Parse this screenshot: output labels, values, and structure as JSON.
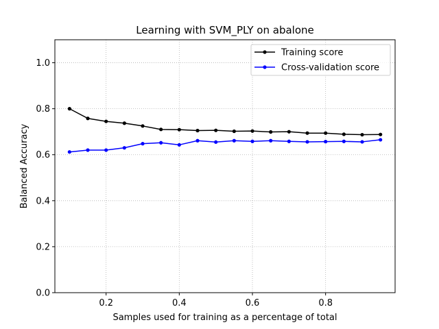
{
  "chart_data": {
    "type": "line",
    "title": "Learning with SVM_PLY on abalone",
    "xlabel": "Samples used for training as a percentage of total",
    "ylabel": "Balanced Accuracy",
    "xlim": [
      0.06,
      0.99
    ],
    "ylim": [
      0.0,
      1.1
    ],
    "xticks": [
      0.2,
      0.4,
      0.6,
      0.8
    ],
    "xtick_labels": [
      "0.2",
      "0.4",
      "0.6",
      "0.8"
    ],
    "yticks": [
      0.0,
      0.2,
      0.4,
      0.6,
      0.8,
      1.0
    ],
    "ytick_labels": [
      "0.0",
      "0.2",
      "0.4",
      "0.6",
      "0.8",
      "1.0"
    ],
    "grid": true,
    "legend_position": "top-right",
    "x": [
      0.1,
      0.15,
      0.2,
      0.25,
      0.3,
      0.35,
      0.4,
      0.45,
      0.5,
      0.55,
      0.6,
      0.65,
      0.7,
      0.75,
      0.8,
      0.85,
      0.9,
      0.95
    ],
    "series": [
      {
        "name": "Training score",
        "color": "#000000",
        "values": [
          0.8,
          0.758,
          0.745,
          0.737,
          0.725,
          0.71,
          0.709,
          0.705,
          0.706,
          0.702,
          0.703,
          0.699,
          0.7,
          0.694,
          0.694,
          0.689,
          0.687,
          0.688
        ]
      },
      {
        "name": "Cross-validation score",
        "color": "#0000ff",
        "values": [
          0.612,
          0.62,
          0.62,
          0.63,
          0.648,
          0.652,
          0.643,
          0.661,
          0.655,
          0.661,
          0.658,
          0.661,
          0.658,
          0.656,
          0.657,
          0.658,
          0.656,
          0.665
        ]
      }
    ]
  }
}
